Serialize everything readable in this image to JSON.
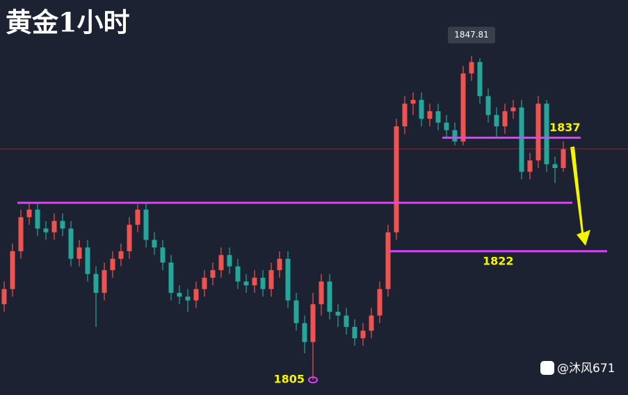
{
  "chart_data": {
    "type": "candlestick",
    "title": "黄金1小时",
    "watermark": "@沐风671",
    "open": [
      1815.0,
      1817.0,
      1822.0,
      1826.5,
      1827.5,
      1825.0,
      1824.5,
      1826.0,
      1825.0,
      1821.0,
      1822.5,
      1819.0,
      1816.5,
      1819.5,
      1821.0,
      1822.0,
      1825.5,
      1827.5,
      1823.5,
      1822.5,
      1820.5,
      1816.5,
      1816.0,
      1815.5,
      1817.0,
      1818.5,
      1819.5,
      1821.5,
      1820.0,
      1818.0,
      1817.5,
      1818.5,
      1817.0,
      1819.5,
      1821.0,
      1815.5,
      1812.5,
      1810.0,
      1815.0,
      1818.0,
      1814.0,
      1813.5,
      1812.0,
      1810.5,
      1811.5,
      1813.5,
      1817.0,
      1824.5,
      1838.5,
      1841.5,
      1842.0,
      1839.5,
      1840.5,
      1839.0,
      1838.0,
      1836.5,
      1845.5,
      1847.0,
      1842.5,
      1840.0,
      1838.5,
      1840.5,
      1841.0,
      1832.5,
      1834.0,
      1841.5,
      1833.5,
      1833.0
    ],
    "high": [
      1818.0,
      1823.0,
      1827.5,
      1828.5,
      1828.5,
      1826.0,
      1827.0,
      1827.0,
      1826.0,
      1823.5,
      1823.5,
      1820.0,
      1820.5,
      1822.0,
      1823.0,
      1826.5,
      1828.2,
      1828.5,
      1824.5,
      1823.5,
      1821.5,
      1817.5,
      1817.0,
      1818.0,
      1819.5,
      1820.5,
      1822.5,
      1822.5,
      1821.0,
      1819.0,
      1819.5,
      1819.5,
      1820.5,
      1822.0,
      1822.0,
      1816.5,
      1813.5,
      1816.5,
      1819.0,
      1819.0,
      1815.0,
      1814.5,
      1813.0,
      1812.5,
      1814.5,
      1818.0,
      1825.5,
      1839.5,
      1842.5,
      1843.0,
      1843.0,
      1841.5,
      1841.5,
      1840.0,
      1839.0,
      1846.5,
      1847.81,
      1847.5,
      1843.5,
      1841.0,
      1841.5,
      1842.0,
      1842.0,
      1835.0,
      1842.5,
      1842.0,
      1834.5,
      1836.5
    ],
    "low": [
      1814.0,
      1816.0,
      1821.0,
      1825.5,
      1824.0,
      1823.5,
      1823.5,
      1824.0,
      1820.0,
      1820.0,
      1818.0,
      1812.0,
      1815.5,
      1818.5,
      1820.0,
      1821.0,
      1824.5,
      1822.5,
      1821.5,
      1819.5,
      1815.5,
      1815.0,
      1814.0,
      1814.5,
      1816.0,
      1817.5,
      1818.5,
      1819.0,
      1817.0,
      1816.5,
      1816.5,
      1816.0,
      1816.0,
      1818.5,
      1814.5,
      1811.5,
      1808.5,
      1805,
      1813.5,
      1813.0,
      1812.0,
      1811.0,
      1809.5,
      1809.5,
      1810.5,
      1812.5,
      1816.0,
      1823.5,
      1837.5,
      1840.0,
      1838.5,
      1838.5,
      1838.0,
      1837.0,
      1836.0,
      1836.0,
      1844.5,
      1841.5,
      1839.0,
      1837.0,
      1837.5,
      1839.5,
      1831.5,
      1831.5,
      1833.0,
      1832.5,
      1831.0,
      1832.5
    ],
    "close": [
      1817.0,
      1822.0,
      1826.5,
      1827.5,
      1825.0,
      1824.5,
      1826.0,
      1825.0,
      1821.0,
      1822.5,
      1819.0,
      1816.5,
      1819.5,
      1821.0,
      1822.0,
      1825.5,
      1827.5,
      1823.5,
      1822.5,
      1820.5,
      1816.5,
      1816.0,
      1815.5,
      1817.0,
      1818.5,
      1819.5,
      1821.5,
      1820.0,
      1818.0,
      1817.5,
      1818.5,
      1817.0,
      1819.5,
      1821.0,
      1815.5,
      1812.5,
      1810.0,
      1815.0,
      1818.0,
      1814.0,
      1813.5,
      1812.0,
      1810.5,
      1811.5,
      1813.5,
      1817.0,
      1824.5,
      1838.5,
      1841.5,
      1842.0,
      1839.5,
      1840.5,
      1839.0,
      1838.0,
      1836.5,
      1845.5,
      1847.0,
      1842.5,
      1840.0,
      1838.5,
      1840.5,
      1841.0,
      1832.5,
      1834.0,
      1841.5,
      1833.5,
      1833.0,
      1835.5
    ],
    "up_color": "#ef5350",
    "down_color": "#26a69a",
    "ylim": [
      1803,
      1855.2
    ],
    "levels": [
      {
        "value": 1828.4
      },
      {
        "value": 1837
      },
      {
        "value": 1822
      }
    ],
    "level_color": "#e040fb",
    "label_color": "#f5f500"
  }
}
